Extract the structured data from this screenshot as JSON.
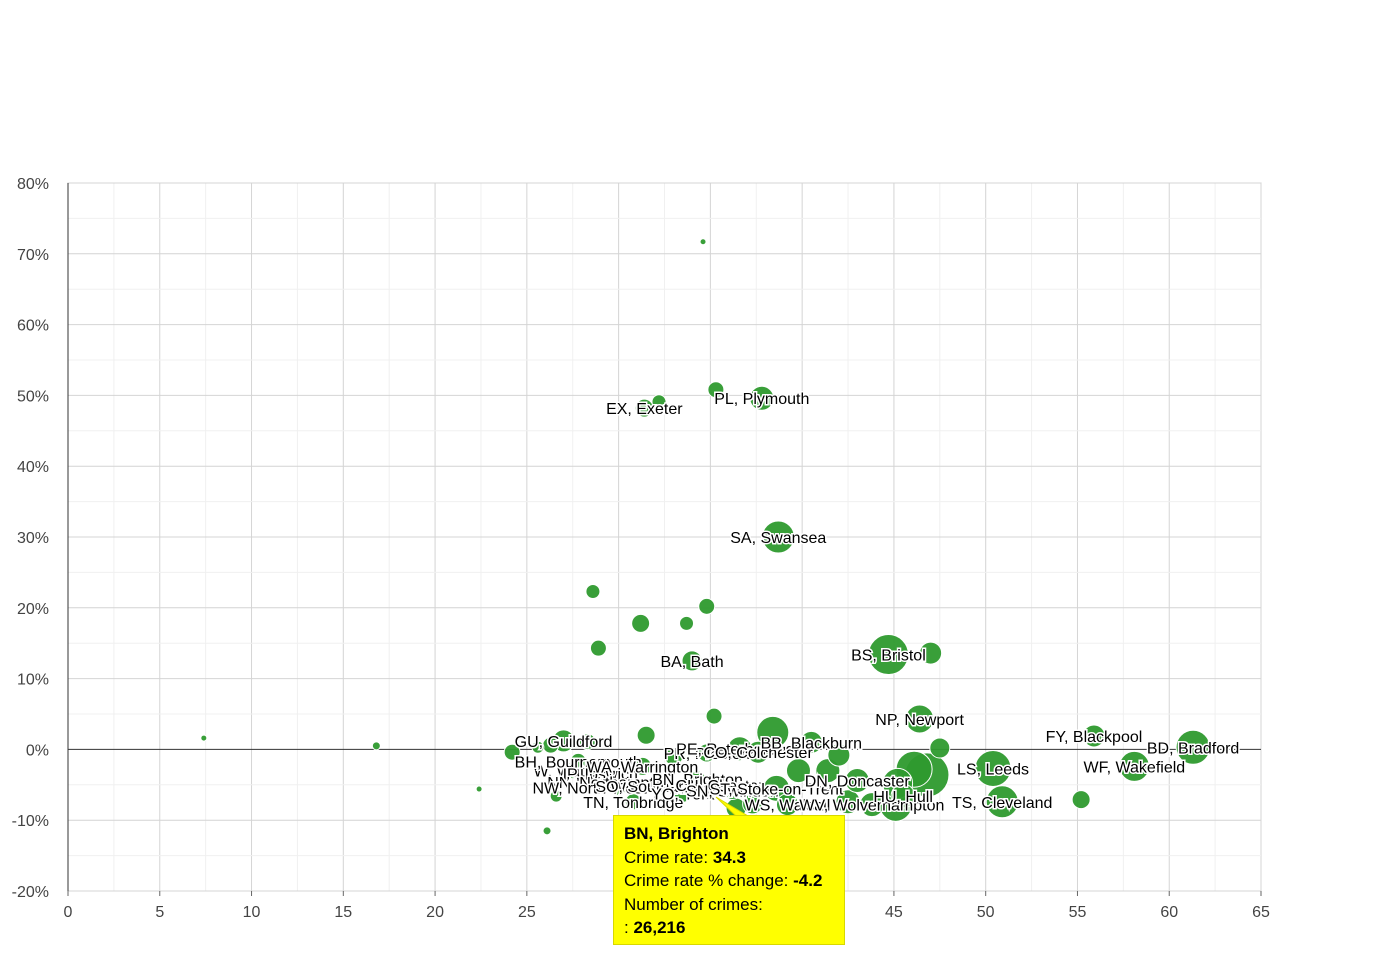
{
  "chart_data": {
    "type": "scatter",
    "title": "",
    "xlabel": "",
    "ylabel": "",
    "xlim": [
      0,
      65
    ],
    "ylim": [
      -20,
      80
    ],
    "x_ticks": [
      0,
      5,
      10,
      15,
      20,
      25,
      30,
      35,
      40,
      45,
      50,
      55,
      60,
      65
    ],
    "x_tick_labels": [
      "0",
      "5",
      "10",
      "15",
      "20",
      "25",
      "",
      "",
      "",
      "45",
      "50",
      "55",
      "60",
      "65"
    ],
    "y_ticks": [
      -20,
      -10,
      0,
      10,
      20,
      30,
      40,
      50,
      60,
      70,
      80
    ],
    "y_tick_labels": [
      "-20%",
      "-10%",
      "0%",
      "10%",
      "20%",
      "30%",
      "40%",
      "50%",
      "60%",
      "70%",
      "80%"
    ],
    "grid": true,
    "colors": {
      "bubble": "#2e9a2e",
      "tooltip_bg": "#ffff00",
      "grid": "#dddddd",
      "zero_line": "#333333"
    },
    "series": [
      {
        "name": "Postcode areas",
        "points": [
          {
            "x": 7.4,
            "y": 1.6,
            "size": 3,
            "label": ""
          },
          {
            "x": 16.8,
            "y": 0.5,
            "size": 4,
            "label": ""
          },
          {
            "x": 22.4,
            "y": -5.6,
            "size": 3,
            "label": ""
          },
          {
            "x": 24.2,
            "y": -0.4,
            "size": 8,
            "label": ""
          },
          {
            "x": 25.6,
            "y": 0.3,
            "size": 6,
            "label": ""
          },
          {
            "x": 26.1,
            "y": -11.5,
            "size": 4,
            "label": ""
          },
          {
            "x": 26.3,
            "y": 0.6,
            "size": 8,
            "label": ""
          },
          {
            "x": 26.6,
            "y": -6.6,
            "size": 6,
            "label": ""
          },
          {
            "x": 27.0,
            "y": 1.2,
            "size": 11,
            "label": "GU, Guildford"
          },
          {
            "x": 27.5,
            "y": -3.0,
            "size": 8,
            "label": "W, Watford"
          },
          {
            "x": 27.8,
            "y": -1.7,
            "size": 8,
            "label": "BH, Bournemouth"
          },
          {
            "x": 28.3,
            "y": 1.1,
            "size": 8,
            "label": ""
          },
          {
            "x": 28.6,
            "y": 22.3,
            "size": 7,
            "label": ""
          },
          {
            "x": 28.9,
            "y": 14.3,
            "size": 8,
            "label": ""
          },
          {
            "x": 29.0,
            "y": -3.4,
            "size": 8,
            "label": "IP, Ipswich"
          },
          {
            "x": 29.5,
            "y": -4.6,
            "size": 8,
            "label": "NN, Northampton"
          },
          {
            "x": 30.0,
            "y": -5.4,
            "size": 8,
            "label": "NW, North West London"
          },
          {
            "x": 30.8,
            "y": -7.4,
            "size": 8,
            "label": "TN, Tonbridge"
          },
          {
            "x": 31.2,
            "y": 17.8,
            "size": 9,
            "label": ""
          },
          {
            "x": 31.3,
            "y": -2.4,
            "size": 9,
            "label": "WA, Warrington"
          },
          {
            "x": 31.4,
            "y": 48.2,
            "size": 9,
            "label": "EX, Exeter"
          },
          {
            "x": 31.5,
            "y": 2.0,
            "size": 9,
            "label": ""
          },
          {
            "x": 32.2,
            "y": 49.1,
            "size": 7,
            "label": ""
          },
          {
            "x": 32.2,
            "y": -5.2,
            "size": 9,
            "label": "SO, Southampton"
          },
          {
            "x": 33.0,
            "y": -1.0,
            "size": 9,
            "label": ""
          },
          {
            "x": 33.5,
            "y": -6.2,
            "size": 9,
            "label": "YO, York"
          },
          {
            "x": 33.7,
            "y": 17.8,
            "size": 7,
            "label": ""
          },
          {
            "x": 34.0,
            "y": 12.5,
            "size": 10,
            "label": "BA, Bath"
          },
          {
            "x": 34.3,
            "y": -4.2,
            "size": 8,
            "label": "BN, Brighton"
          },
          {
            "x": 34.6,
            "y": 71.7,
            "size": 3,
            "label": ""
          },
          {
            "x": 34.8,
            "y": 20.2,
            "size": 8,
            "label": ""
          },
          {
            "x": 34.8,
            "y": -0.5,
            "size": 9,
            "label": "PR, Preston"
          },
          {
            "x": 35.2,
            "y": 4.7,
            "size": 8,
            "label": ""
          },
          {
            "x": 35.3,
            "y": 50.8,
            "size": 8,
            "label": ""
          },
          {
            "x": 35.5,
            "y": -5.0,
            "size": 9,
            "label": "CH, Chester"
          },
          {
            "x": 36.2,
            "y": -5.8,
            "size": 9,
            "label": "SN, Swindon"
          },
          {
            "x": 36.4,
            "y": -8.3,
            "size": 10,
            "label": ""
          },
          {
            "x": 36.6,
            "y": 0.1,
            "size": 12,
            "label": "PE, Peterborough"
          },
          {
            "x": 37.3,
            "y": -7.7,
            "size": 10,
            "label": ""
          },
          {
            "x": 37.6,
            "y": -0.4,
            "size": 11,
            "label": "CO, Colchester"
          },
          {
            "x": 37.8,
            "y": 49.6,
            "size": 12,
            "label": "PL, Plymouth"
          },
          {
            "x": 38.4,
            "y": 2.4,
            "size": 16,
            "label": ""
          },
          {
            "x": 38.6,
            "y": -5.5,
            "size": 13,
            "label": "ST, Stoke-on-Trent"
          },
          {
            "x": 38.7,
            "y": 30.0,
            "size": 16,
            "label": "SA, Swansea"
          },
          {
            "x": 39.2,
            "y": -7.8,
            "size": 11,
            "label": "WS, Walsall"
          },
          {
            "x": 39.8,
            "y": -3.0,
            "size": 12,
            "label": ""
          },
          {
            "x": 40.5,
            "y": 1.0,
            "size": 11,
            "label": "BB, Blackburn"
          },
          {
            "x": 41.4,
            "y": -3.0,
            "size": 12,
            "label": ""
          },
          {
            "x": 42.0,
            "y": -0.8,
            "size": 11,
            "label": ""
          },
          {
            "x": 42.5,
            "y": -7.4,
            "size": 12,
            "label": ""
          },
          {
            "x": 43.0,
            "y": -4.4,
            "size": 12,
            "label": "DN, Doncaster"
          },
          {
            "x": 43.8,
            "y": -7.8,
            "size": 12,
            "label": "WV, Wolverhampton"
          },
          {
            "x": 44.7,
            "y": 13.4,
            "size": 20,
            "label": "BS, Bristol"
          },
          {
            "x": 45.1,
            "y": -7.9,
            "size": 16,
            "label": ""
          },
          {
            "x": 45.2,
            "y": -4.8,
            "size": 15,
            "label": ""
          },
          {
            "x": 45.5,
            "y": -6.6,
            "size": 12,
            "label": "HU, Hull"
          },
          {
            "x": 46.1,
            "y": -2.8,
            "size": 18,
            "label": ""
          },
          {
            "x": 46.4,
            "y": 4.3,
            "size": 14,
            "label": "NP, Newport"
          },
          {
            "x": 46.8,
            "y": -3.6,
            "size": 22,
            "label": ""
          },
          {
            "x": 47.0,
            "y": 13.6,
            "size": 11,
            "label": ""
          },
          {
            "x": 47.5,
            "y": 0.2,
            "size": 10,
            "label": ""
          },
          {
            "x": 50.4,
            "y": -2.7,
            "size": 18,
            "label": "LS, Leeds"
          },
          {
            "x": 50.9,
            "y": -7.4,
            "size": 16,
            "label": "TS, Cleveland"
          },
          {
            "x": 55.2,
            "y": -7.1,
            "size": 9,
            "label": ""
          },
          {
            "x": 55.9,
            "y": 1.9,
            "size": 11,
            "label": "FY, Blackpool"
          },
          {
            "x": 58.1,
            "y": -2.4,
            "size": 15,
            "label": "WF, Wakefield"
          },
          {
            "x": 61.3,
            "y": 0.3,
            "size": 17,
            "label": "BD, Bradford"
          }
        ]
      }
    ],
    "tooltip": {
      "title": "BN, Brighton",
      "rate_label": "Crime rate:",
      "rate_value": "34.3",
      "change_label": "Crime rate % change:",
      "change_value": "-4.2",
      "crimes_label": "Number of crimes:",
      "crimes_prefix": ":",
      "crimes_value": "26,216"
    }
  }
}
